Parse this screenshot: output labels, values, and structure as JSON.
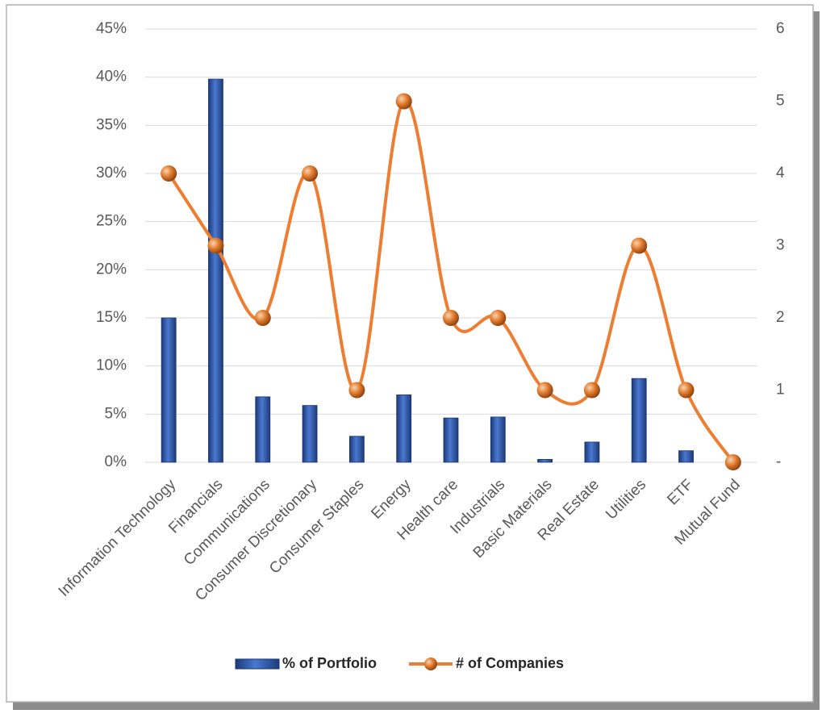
{
  "chart_data": {
    "type": "combo",
    "categories": [
      "Information Technology",
      "Financials",
      "Communications",
      "Consumer Discretionary",
      "Consumer Staples",
      "Energy",
      "Health care",
      "Industrials",
      "Basic Materials",
      "Real Estate",
      "Utilities",
      "ETF",
      "Mutual Fund"
    ],
    "series": [
      {
        "name": "% of Portfolio",
        "type": "bar",
        "color": "#2f55a4",
        "values": [
          15,
          39.8,
          6.8,
          5.9,
          2.7,
          7.0,
          4.6,
          4.7,
          0.3,
          2.1,
          8.7,
          1.2,
          0
        ]
      },
      {
        "name": "# of Companies",
        "type": "line",
        "axis": "y2",
        "color": "#ed7d31",
        "values": [
          4,
          3,
          2,
          4,
          1,
          5,
          2,
          2,
          1,
          1,
          3,
          1,
          0
        ]
      }
    ],
    "ylim": [
      0,
      45
    ],
    "yticks": [
      {
        "value": 0,
        "label": "0%"
      },
      {
        "value": 5,
        "label": "5%"
      },
      {
        "value": 10,
        "label": "10%"
      },
      {
        "value": 15,
        "label": "15%"
      },
      {
        "value": 20,
        "label": "20%"
      },
      {
        "value": 25,
        "label": "25%"
      },
      {
        "value": 30,
        "label": "30%"
      },
      {
        "value": 35,
        "label": "35%"
      },
      {
        "value": 40,
        "label": "40%"
      },
      {
        "value": 45,
        "label": "45%"
      }
    ],
    "y2lim": [
      0,
      6
    ],
    "y2ticks": [
      {
        "value": 0,
        "label": "-"
      },
      1,
      2,
      3,
      4,
      5,
      6
    ],
    "grid": true,
    "legend": "bottom"
  }
}
